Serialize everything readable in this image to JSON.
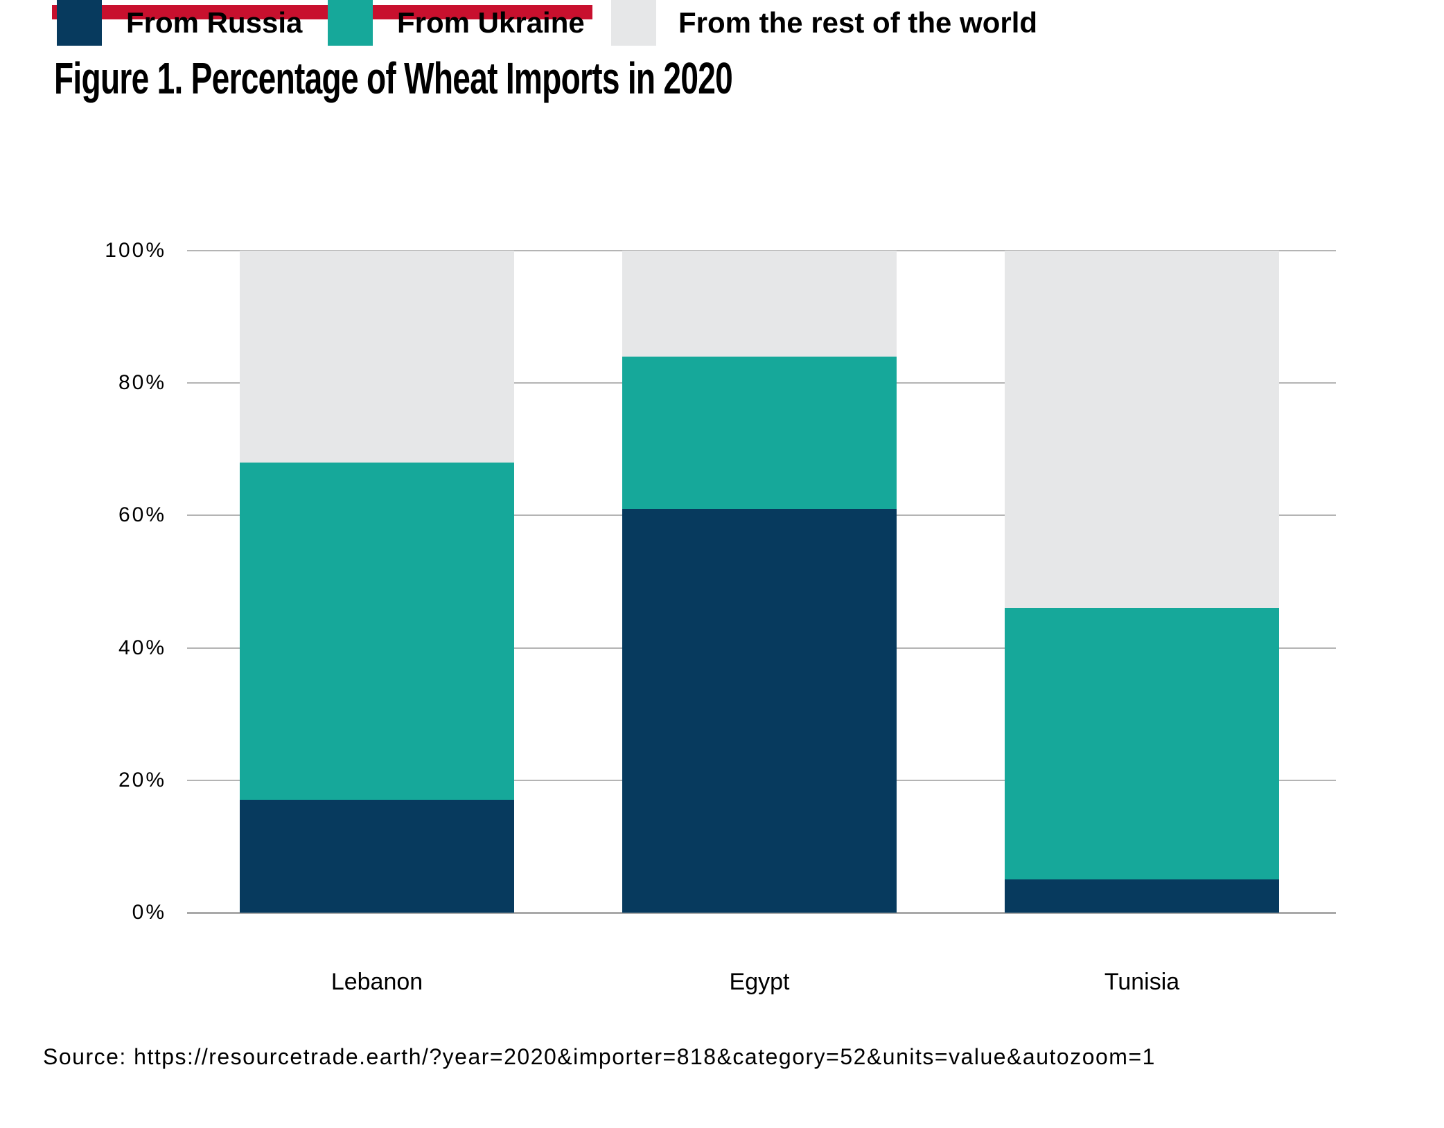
{
  "accent_bar": {
    "color": "#C8102E"
  },
  "title": "Figure 1. Percentage of Wheat Imports in 2020",
  "legend": {
    "position": "top-left",
    "items": [
      {
        "label": "From Russia",
        "color": "#073A5E"
      },
      {
        "label": "From Ukraine",
        "color": "#16A89A"
      },
      {
        "label": "From the rest of the world",
        "color": "#E6E7E8"
      }
    ]
  },
  "chart_data": {
    "type": "bar",
    "stacked": true,
    "title": "Figure 1. Percentage of Wheat Imports in 2020",
    "categories": [
      "Lebanon",
      "Egypt",
      "Tunisia"
    ],
    "series": [
      {
        "name": "From Russia",
        "color": "#073A5E",
        "values": [
          17,
          61,
          5
        ]
      },
      {
        "name": "From Ukraine",
        "color": "#16A89A",
        "values": [
          51,
          23,
          41
        ]
      },
      {
        "name": "From the rest of the world",
        "color": "#E6E7E8",
        "values": [
          32,
          16,
          54
        ]
      }
    ],
    "totals_percent": [
      100,
      100,
      100
    ],
    "xlabel": "",
    "ylabel": "",
    "ylim": [
      0,
      100
    ],
    "y_ticks": [
      "0%",
      "20%",
      "40%",
      "60%",
      "80%",
      "100%"
    ],
    "y_tick_values": [
      0,
      20,
      40,
      60,
      80,
      100
    ],
    "grid": true,
    "gridline_color": "#B4B4B4",
    "legend_position": "top-left"
  },
  "source": "Source: https://resourcetrade.earth/?year=2020&importer=818&category=52&units=value&autozoom=1"
}
